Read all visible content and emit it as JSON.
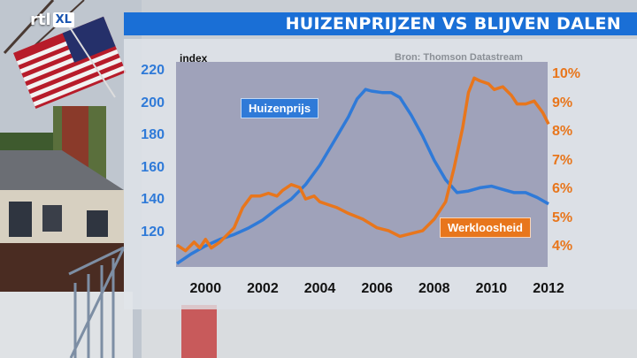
{
  "logo": {
    "brand": "rtl",
    "sub": "XL"
  },
  "header": {
    "title": "HUIZENPRIJZEN VS BLIJVEN DALEN"
  },
  "source": "Bron: Thomson Datastream",
  "colors": {
    "house": "#2f7ad8",
    "unemployment": "#e8761c",
    "title_bar": "#1a6fd6"
  },
  "chart_data": {
    "type": "line",
    "left_axis_label": "index",
    "y_left": {
      "ticks": [
        "120",
        "140",
        "160",
        "180",
        "200",
        "220"
      ],
      "ylim": [
        100,
        225
      ]
    },
    "y_right": {
      "ticks": [
        "4%",
        "5%",
        "6%",
        "7%",
        "8%",
        "9%",
        "10%"
      ],
      "ylim": [
        3.4,
        10.4
      ]
    },
    "x": {
      "ticks": [
        "2000",
        "2002",
        "2004",
        "2006",
        "2008",
        "2010",
        "2012"
      ],
      "xlim": [
        1999.0,
        2012.0
      ]
    },
    "series": [
      {
        "name": "Huizenprijs",
        "axis": "left",
        "points": [
          [
            1999.0,
            101
          ],
          [
            1999.5,
            107
          ],
          [
            2000.0,
            112
          ],
          [
            2000.5,
            116
          ],
          [
            2001.0,
            119
          ],
          [
            2001.5,
            123
          ],
          [
            2002.0,
            128
          ],
          [
            2002.5,
            135
          ],
          [
            2003.0,
            141
          ],
          [
            2003.5,
            150
          ],
          [
            2004.0,
            162
          ],
          [
            2004.5,
            177
          ],
          [
            2005.0,
            192
          ],
          [
            2005.3,
            203
          ],
          [
            2005.6,
            209
          ],
          [
            2005.8,
            208
          ],
          [
            2006.2,
            207
          ],
          [
            2006.5,
            207
          ],
          [
            2006.8,
            204
          ],
          [
            2007.2,
            193
          ],
          [
            2007.6,
            180
          ],
          [
            2008.0,
            165
          ],
          [
            2008.4,
            153
          ],
          [
            2008.8,
            145
          ],
          [
            2009.2,
            146
          ],
          [
            2009.6,
            148
          ],
          [
            2010.0,
            149
          ],
          [
            2010.4,
            147
          ],
          [
            2010.8,
            145
          ],
          [
            2011.2,
            145
          ],
          [
            2011.6,
            142
          ],
          [
            2012.0,
            138
          ]
        ]
      },
      {
        "name": "Werkloosheid",
        "axis": "right",
        "points": [
          [
            1999.0,
            4.1
          ],
          [
            1999.3,
            3.9
          ],
          [
            1999.6,
            4.2
          ],
          [
            1999.8,
            4.0
          ],
          [
            2000.0,
            4.3
          ],
          [
            2000.2,
            4.0
          ],
          [
            2000.5,
            4.2
          ],
          [
            2000.8,
            4.5
          ],
          [
            2001.0,
            4.7
          ],
          [
            2001.3,
            5.4
          ],
          [
            2001.6,
            5.8
          ],
          [
            2001.9,
            5.8
          ],
          [
            2002.2,
            5.9
          ],
          [
            2002.5,
            5.8
          ],
          [
            2002.7,
            6.0
          ],
          [
            2003.0,
            6.2
          ],
          [
            2003.3,
            6.1
          ],
          [
            2003.5,
            5.7
          ],
          [
            2003.8,
            5.8
          ],
          [
            2004.0,
            5.6
          ],
          [
            2004.3,
            5.5
          ],
          [
            2004.6,
            5.4
          ],
          [
            2005.0,
            5.2
          ],
          [
            2005.5,
            5.0
          ],
          [
            2006.0,
            4.7
          ],
          [
            2006.4,
            4.6
          ],
          [
            2006.8,
            4.4
          ],
          [
            2007.2,
            4.5
          ],
          [
            2007.6,
            4.6
          ],
          [
            2008.0,
            5.0
          ],
          [
            2008.4,
            5.6
          ],
          [
            2008.7,
            6.8
          ],
          [
            2009.0,
            8.2
          ],
          [
            2009.2,
            9.4
          ],
          [
            2009.4,
            9.9
          ],
          [
            2009.6,
            9.8
          ],
          [
            2009.9,
            9.7
          ],
          [
            2010.1,
            9.5
          ],
          [
            2010.4,
            9.6
          ],
          [
            2010.7,
            9.3
          ],
          [
            2010.9,
            9.0
          ],
          [
            2011.2,
            9.0
          ],
          [
            2011.5,
            9.1
          ],
          [
            2011.8,
            8.7
          ],
          [
            2012.0,
            8.3
          ]
        ]
      }
    ]
  }
}
